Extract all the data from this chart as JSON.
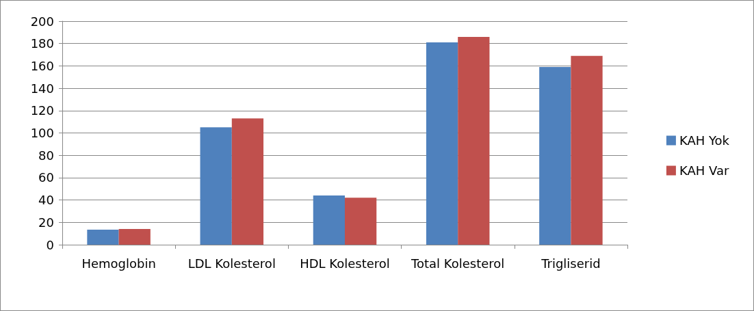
{
  "chart_data": {
    "type": "bar",
    "categories": [
      "Hemoglobin",
      "LDL Kolesterol",
      "HDL Kolesterol",
      "Total Kolesterol",
      "Trigliserid"
    ],
    "series": [
      {
        "name": "KAH Yok",
        "color": "#4f81bd",
        "values": [
          13.5,
          105,
          44,
          181,
          159
        ]
      },
      {
        "name": "KAH Var",
        "color": "#c0504d",
        "values": [
          14,
          113,
          42,
          186,
          169
        ]
      }
    ],
    "ylim": [
      0,
      200
    ],
    "yticks": [
      0,
      20,
      40,
      60,
      80,
      100,
      120,
      140,
      160,
      180,
      200
    ],
    "grid": "y",
    "legend": "right"
  }
}
